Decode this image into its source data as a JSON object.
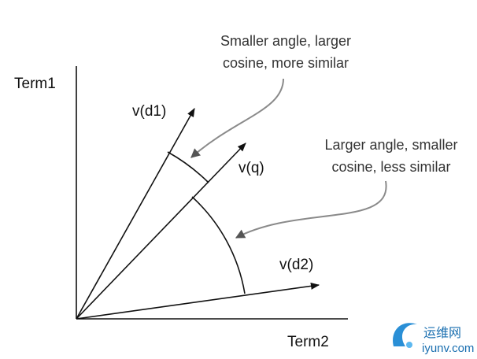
{
  "axes": {
    "y_label": "Term1",
    "x_label": "Term2"
  },
  "vectors": [
    {
      "label": "v(d1)"
    },
    {
      "label": "v(q)"
    },
    {
      "label": "v(d2)"
    }
  ],
  "annotations": [
    {
      "lines": [
        "Smaller angle, larger",
        "cosine, more similar"
      ]
    },
    {
      "lines": [
        "Larger angle, smaller",
        "cosine, less similar"
      ]
    }
  ],
  "watermark": {
    "name": "运维网",
    "url": "iyunv.com"
  }
}
